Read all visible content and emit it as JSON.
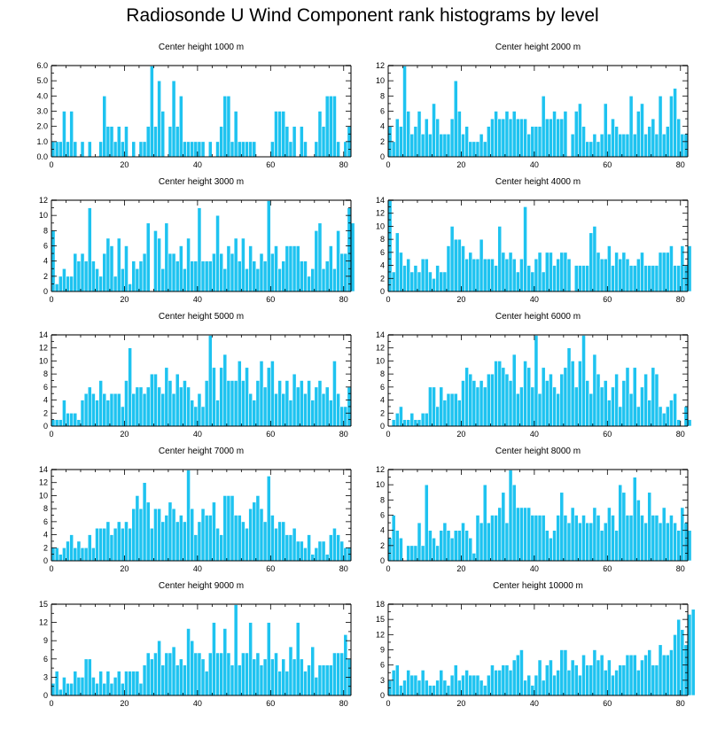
{
  "title": "Radiosonde U Wind Component rank histograms by level",
  "colors": {
    "bar": "#1ec3f0",
    "bar_edge": "#ffffff",
    "axis": "#000000",
    "frame_top": "#666666"
  },
  "chart_data": [
    {
      "type": "bar",
      "title": "Center height 1000 m",
      "x_ticks": [
        "0",
        "20",
        "40",
        "60",
        "80"
      ],
      "y_ticks": [
        "0.0",
        "1.0",
        "2.0",
        "3.0",
        "4.0",
        "5.0",
        "6.0"
      ],
      "ylim": [
        0,
        6
      ],
      "xlim": [
        0,
        82
      ],
      "values": [
        1,
        1,
        1,
        3,
        1,
        3,
        1,
        0,
        1,
        0,
        1,
        0,
        0,
        1,
        4,
        2,
        2,
        1,
        2,
        1,
        2,
        0,
        1,
        0,
        1,
        1,
        2,
        6,
        2,
        5,
        3,
        0,
        2,
        5,
        2,
        4,
        1,
        1,
        1,
        1,
        1,
        1,
        0,
        1,
        0,
        1,
        2,
        4,
        4,
        1,
        3,
        1,
        1,
        1,
        1,
        1,
        0,
        0,
        0,
        0,
        1,
        3,
        3,
        3,
        2,
        1,
        2,
        0,
        2,
        1,
        0,
        0,
        1,
        3,
        2,
        4,
        4,
        4,
        1,
        0,
        1,
        2
      ]
    },
    {
      "type": "bar",
      "title": "Center height 2000 m",
      "x_ticks": [
        "0",
        "20",
        "40",
        "60",
        "80"
      ],
      "y_ticks": [
        "0",
        "2",
        "4",
        "6",
        "8",
        "10",
        "12"
      ],
      "ylim": [
        0,
        12
      ],
      "xlim": [
        0,
        82
      ],
      "values": [
        4,
        2,
        5,
        4,
        12,
        6,
        3,
        4,
        6,
        3,
        5,
        3,
        7,
        5,
        3,
        3,
        3,
        5,
        10,
        6,
        3,
        4,
        2,
        2,
        2,
        3,
        2,
        4,
        5,
        6,
        5,
        5,
        6,
        5,
        6,
        5,
        5,
        5,
        3,
        4,
        4,
        4,
        8,
        5,
        5,
        6,
        5,
        5,
        6,
        0,
        3,
        6,
        7,
        4,
        2,
        2,
        3,
        2,
        3,
        7,
        3,
        5,
        4,
        3,
        3,
        3,
        8,
        3,
        6,
        7,
        3,
        4,
        5,
        3,
        8,
        3,
        4,
        8,
        9,
        5,
        3,
        3
      ]
    },
    {
      "type": "bar",
      "title": "Center height 3000 m",
      "x_ticks": [
        "0",
        "20",
        "40",
        "60",
        "80"
      ],
      "y_ticks": [
        "0",
        "2",
        "4",
        "6",
        "8",
        "10",
        "12"
      ],
      "ylim": [
        0,
        12
      ],
      "xlim": [
        0,
        82
      ],
      "values": [
        8,
        1,
        2,
        3,
        2,
        2,
        5,
        4,
        5,
        4,
        11,
        4,
        3,
        2,
        5,
        7,
        6,
        2,
        7,
        3,
        6,
        1,
        4,
        3,
        4,
        5,
        9,
        0,
        8,
        7,
        3,
        9,
        5,
        5,
        4,
        6,
        3,
        7,
        4,
        4,
        11,
        4,
        4,
        4,
        5,
        10,
        5,
        3,
        6,
        5,
        7,
        4,
        7,
        3,
        6,
        4,
        3,
        5,
        4,
        12,
        5,
        6,
        3,
        4,
        6,
        6,
        6,
        6,
        4,
        4,
        2,
        3,
        8,
        9,
        3,
        4,
        6,
        3,
        8,
        5,
        5,
        11,
        9
      ]
    },
    {
      "type": "bar",
      "title": "Center height 4000 m",
      "x_ticks": [
        "0",
        "20",
        "40",
        "60",
        "80"
      ],
      "y_ticks": [
        "0",
        "2",
        "4",
        "6",
        "8",
        "10",
        "12",
        "14"
      ],
      "ylim": [
        0,
        14
      ],
      "xlim": [
        0,
        82
      ],
      "values": [
        14,
        3,
        9,
        6,
        4,
        5,
        3,
        4,
        3,
        5,
        5,
        3,
        2,
        4,
        3,
        3,
        7,
        10,
        8,
        8,
        7,
        5,
        6,
        5,
        5,
        8,
        5,
        5,
        5,
        4,
        10,
        6,
        5,
        6,
        5,
        3,
        5,
        13,
        4,
        3,
        5,
        6,
        3,
        6,
        6,
        4,
        5,
        6,
        6,
        5,
        0,
        4,
        4,
        4,
        4,
        9,
        10,
        6,
        5,
        5,
        7,
        4,
        6,
        5,
        6,
        5,
        4,
        4,
        5,
        6,
        4,
        4,
        4,
        4,
        6,
        6,
        6,
        7,
        4,
        4,
        7,
        4,
        7
      ]
    },
    {
      "type": "bar",
      "title": "Center height 5000 m",
      "x_ticks": [
        "0",
        "20",
        "40",
        "60",
        "80"
      ],
      "y_ticks": [
        "0",
        "2",
        "4",
        "6",
        "8",
        "10",
        "12",
        "14"
      ],
      "ylim": [
        0,
        14
      ],
      "xlim": [
        0,
        82
      ],
      "values": [
        1,
        1,
        1,
        4,
        2,
        2,
        2,
        1,
        4,
        5,
        6,
        5,
        4,
        7,
        5,
        4,
        5,
        5,
        5,
        3,
        7,
        12,
        5,
        6,
        6,
        5,
        6,
        8,
        8,
        6,
        5,
        9,
        7,
        5,
        8,
        6,
        7,
        6,
        4,
        3,
        5,
        3,
        7,
        14,
        9,
        4,
        9,
        11,
        7,
        7,
        7,
        10,
        7,
        9,
        5,
        4,
        7,
        10,
        6,
        9,
        10,
        5,
        7,
        5,
        7,
        4,
        8,
        6,
        7,
        5,
        7,
        4,
        6,
        7,
        5,
        6,
        4,
        10,
        5,
        3,
        3,
        6
      ]
    },
    {
      "type": "bar",
      "title": "Center height 6000 m",
      "x_ticks": [
        "0",
        "20",
        "40",
        "60",
        "80"
      ],
      "y_ticks": [
        "0",
        "2",
        "4",
        "6",
        "8",
        "10",
        "12",
        "14"
      ],
      "ylim": [
        0,
        14
      ],
      "xlim": [
        0,
        82
      ],
      "values": [
        0,
        1,
        2,
        3,
        1,
        1,
        2,
        1,
        1,
        2,
        2,
        6,
        6,
        3,
        6,
        4,
        5,
        5,
        5,
        4,
        7,
        9,
        8,
        7,
        6,
        7,
        6,
        8,
        8,
        10,
        10,
        9,
        8,
        7,
        11,
        5,
        6,
        10,
        9,
        6,
        14,
        5,
        9,
        7,
        8,
        6,
        5,
        8,
        9,
        12,
        10,
        6,
        10,
        14,
        7,
        5,
        11,
        8,
        6,
        7,
        4,
        6,
        8,
        3,
        7,
        9,
        5,
        9,
        3,
        6,
        8,
        4,
        9,
        8,
        3,
        2,
        3,
        4,
        5,
        1,
        0,
        3,
        1
      ]
    },
    {
      "type": "bar",
      "title": "Center height 7000 m",
      "x_ticks": [
        "0",
        "20",
        "40",
        "60",
        "80"
      ],
      "y_ticks": [
        "0",
        "2",
        "4",
        "6",
        "8",
        "10",
        "12",
        "14"
      ],
      "ylim": [
        0,
        14
      ],
      "xlim": [
        0,
        82
      ],
      "values": [
        2,
        2,
        1,
        2,
        3,
        4,
        2,
        3,
        2,
        2,
        4,
        2,
        5,
        5,
        5,
        6,
        4,
        5,
        6,
        5,
        6,
        5,
        8,
        10,
        8,
        12,
        9,
        5,
        8,
        8,
        6,
        7,
        9,
        8,
        6,
        7,
        6,
        14,
        8,
        4,
        6,
        8,
        7,
        7,
        9,
        5,
        4,
        10,
        10,
        10,
        7,
        7,
        6,
        5,
        8,
        9,
        10,
        8,
        6,
        13,
        7,
        5,
        6,
        6,
        4,
        4,
        5,
        3,
        3,
        2,
        4,
        1,
        2,
        3,
        3,
        1,
        4,
        5,
        4,
        3,
        2,
        2
      ]
    },
    {
      "type": "bar",
      "title": "Center height 8000 m",
      "x_ticks": [
        "0",
        "20",
        "40",
        "60",
        "80"
      ],
      "y_ticks": [
        "0",
        "2",
        "4",
        "6",
        "8",
        "10",
        "12"
      ],
      "ylim": [
        0,
        12
      ],
      "xlim": [
        0,
        82
      ],
      "values": [
        3,
        6,
        4,
        3,
        0,
        2,
        2,
        2,
        5,
        2,
        10,
        4,
        3,
        2,
        4,
        5,
        4,
        3,
        4,
        4,
        5,
        4,
        3,
        1,
        6,
        5,
        10,
        5,
        6,
        6,
        7,
        9,
        5,
        12,
        10,
        7,
        7,
        7,
        7,
        6,
        6,
        6,
        6,
        4,
        3,
        4,
        6,
        9,
        6,
        5,
        7,
        6,
        5,
        6,
        5,
        5,
        7,
        6,
        4,
        5,
        7,
        6,
        4,
        10,
        9,
        6,
        6,
        11,
        8,
        6,
        5,
        9,
        6,
        6,
        5,
        7,
        5,
        6,
        5,
        4,
        7,
        5,
        4
      ]
    },
    {
      "type": "bar",
      "title": "Center height 9000 m",
      "x_ticks": [
        "0",
        "20",
        "40",
        "60",
        "80"
      ],
      "y_ticks": [
        "0",
        "3",
        "6",
        "9",
        "12",
        "15"
      ],
      "ylim": [
        0,
        15
      ],
      "xlim": [
        0,
        82
      ],
      "values": [
        2,
        4,
        1,
        3,
        2,
        2,
        4,
        3,
        3,
        6,
        6,
        3,
        2,
        4,
        2,
        4,
        2,
        3,
        4,
        2,
        4,
        4,
        4,
        4,
        2,
        5,
        7,
        6,
        7,
        9,
        5,
        7,
        7,
        8,
        5,
        6,
        5,
        11,
        9,
        7,
        7,
        6,
        4,
        7,
        12,
        7,
        7,
        11,
        7,
        5,
        15,
        5,
        7,
        7,
        12,
        6,
        7,
        5,
        6,
        12,
        6,
        7,
        4,
        6,
        4,
        8,
        6,
        12,
        6,
        4,
        5,
        8,
        3,
        5,
        5,
        5,
        5,
        7,
        7,
        7,
        10,
        6
      ]
    },
    {
      "type": "bar",
      "title": "Center height 10000 m",
      "x_ticks": [
        "0",
        "20",
        "40",
        "60",
        "80"
      ],
      "y_ticks": [
        "0",
        "3",
        "6",
        "9",
        "12",
        "15",
        "18"
      ],
      "ylim": [
        0,
        18
      ],
      "xlim": [
        0,
        82
      ],
      "values": [
        3,
        5,
        6,
        2,
        3,
        5,
        4,
        4,
        3,
        5,
        3,
        2,
        2,
        3,
        5,
        3,
        2,
        4,
        6,
        3,
        4,
        5,
        4,
        4,
        4,
        3,
        2,
        4,
        6,
        5,
        5,
        6,
        6,
        5,
        7,
        8,
        9,
        3,
        4,
        2,
        4,
        7,
        3,
        6,
        7,
        4,
        5,
        9,
        9,
        5,
        7,
        6,
        4,
        8,
        6,
        6,
        9,
        7,
        8,
        5,
        7,
        4,
        5,
        6,
        6,
        8,
        8,
        8,
        5,
        7,
        8,
        9,
        6,
        6,
        10,
        8,
        8,
        9,
        12,
        15,
        13,
        10,
        16,
        17
      ]
    }
  ]
}
